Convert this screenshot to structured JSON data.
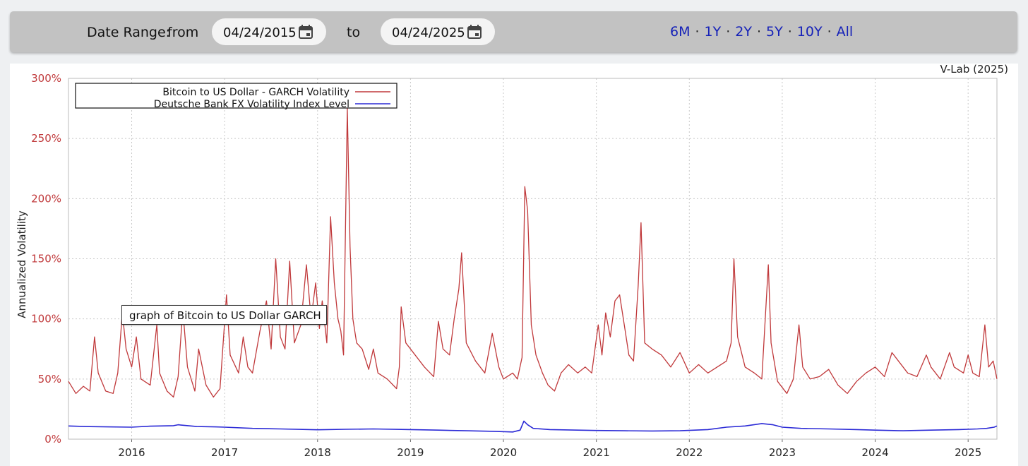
{
  "toolbar": {
    "date_range_label": "Date Range:",
    "from_label": "from",
    "from_date": "04/24/2015",
    "to_label": "to",
    "to_date": "04/24/2025",
    "range_links": [
      "6M",
      "1Y",
      "2Y",
      "5Y",
      "10Y",
      "All"
    ],
    "separator": "·"
  },
  "tooltip": "graph of Bitcoin to US Dollar GARCH",
  "chart_data": {
    "type": "line",
    "credit": "V-Lab (2025)",
    "ylabel": "Annualized Volatility",
    "xlabel": "",
    "xlim": [
      2015.32,
      2025.31
    ],
    "ylim": [
      0,
      300
    ],
    "y_ticks": [
      "0%",
      "50%",
      "100%",
      "150%",
      "200%",
      "250%",
      "300%"
    ],
    "y_tick_values": [
      0,
      50,
      100,
      150,
      200,
      250,
      300
    ],
    "x_ticks": [
      "2016",
      "2017",
      "2018",
      "2019",
      "2020",
      "2021",
      "2022",
      "2023",
      "2024",
      "2025"
    ],
    "grid": true,
    "legend_position": "top-left",
    "series": [
      {
        "name": "Bitcoin to US Dollar - GARCH Volatility",
        "color": "#c0393b",
        "points": [
          [
            2015.32,
            48
          ],
          [
            2015.4,
            38
          ],
          [
            2015.48,
            44
          ],
          [
            2015.55,
            40
          ],
          [
            2015.6,
            85
          ],
          [
            2015.64,
            55
          ],
          [
            2015.72,
            40
          ],
          [
            2015.8,
            38
          ],
          [
            2015.85,
            55
          ],
          [
            2015.9,
            105
          ],
          [
            2015.94,
            75
          ],
          [
            2016.0,
            60
          ],
          [
            2016.05,
            85
          ],
          [
            2016.1,
            50
          ],
          [
            2016.2,
            45
          ],
          [
            2016.27,
            95
          ],
          [
            2016.3,
            55
          ],
          [
            2016.38,
            40
          ],
          [
            2016.45,
            35
          ],
          [
            2016.5,
            52
          ],
          [
            2016.55,
            108
          ],
          [
            2016.6,
            60
          ],
          [
            2016.68,
            40
          ],
          [
            2016.72,
            75
          ],
          [
            2016.8,
            45
          ],
          [
            2016.88,
            35
          ],
          [
            2016.95,
            42
          ],
          [
            2017.02,
            120
          ],
          [
            2017.06,
            70
          ],
          [
            2017.15,
            55
          ],
          [
            2017.2,
            85
          ],
          [
            2017.25,
            60
          ],
          [
            2017.3,
            55
          ],
          [
            2017.38,
            90
          ],
          [
            2017.45,
            115
          ],
          [
            2017.5,
            75
          ],
          [
            2017.55,
            150
          ],
          [
            2017.6,
            85
          ],
          [
            2017.65,
            75
          ],
          [
            2017.7,
            148
          ],
          [
            2017.75,
            80
          ],
          [
            2017.82,
            95
          ],
          [
            2017.88,
            145
          ],
          [
            2017.93,
            100
          ],
          [
            2017.98,
            130
          ],
          [
            2018.02,
            92
          ],
          [
            2018.05,
            115
          ],
          [
            2018.1,
            80
          ],
          [
            2018.14,
            185
          ],
          [
            2018.18,
            130
          ],
          [
            2018.22,
            100
          ],
          [
            2018.25,
            90
          ],
          [
            2018.28,
            70
          ],
          [
            2018.32,
            275
          ],
          [
            2018.35,
            160
          ],
          [
            2018.38,
            100
          ],
          [
            2018.42,
            80
          ],
          [
            2018.48,
            75
          ],
          [
            2018.55,
            58
          ],
          [
            2018.6,
            75
          ],
          [
            2018.65,
            55
          ],
          [
            2018.75,
            50
          ],
          [
            2018.85,
            42
          ],
          [
            2018.88,
            60
          ],
          [
            2018.9,
            110
          ],
          [
            2018.95,
            80
          ],
          [
            2019.05,
            70
          ],
          [
            2019.15,
            60
          ],
          [
            2019.25,
            52
          ],
          [
            2019.3,
            98
          ],
          [
            2019.35,
            75
          ],
          [
            2019.42,
            70
          ],
          [
            2019.47,
            100
          ],
          [
            2019.52,
            125
          ],
          [
            2019.55,
            155
          ],
          [
            2019.6,
            80
          ],
          [
            2019.7,
            65
          ],
          [
            2019.8,
            55
          ],
          [
            2019.88,
            88
          ],
          [
            2019.95,
            60
          ],
          [
            2020.0,
            50
          ],
          [
            2020.1,
            55
          ],
          [
            2020.15,
            50
          ],
          [
            2020.2,
            68
          ],
          [
            2020.23,
            210
          ],
          [
            2020.26,
            190
          ],
          [
            2020.3,
            95
          ],
          [
            2020.35,
            70
          ],
          [
            2020.42,
            55
          ],
          [
            2020.48,
            45
          ],
          [
            2020.55,
            40
          ],
          [
            2020.62,
            55
          ],
          [
            2020.7,
            62
          ],
          [
            2020.8,
            55
          ],
          [
            2020.88,
            60
          ],
          [
            2020.95,
            55
          ],
          [
            2021.02,
            95
          ],
          [
            2021.06,
            70
          ],
          [
            2021.1,
            105
          ],
          [
            2021.15,
            85
          ],
          [
            2021.2,
            115
          ],
          [
            2021.25,
            120
          ],
          [
            2021.3,
            95
          ],
          [
            2021.35,
            70
          ],
          [
            2021.4,
            65
          ],
          [
            2021.45,
            128
          ],
          [
            2021.48,
            180
          ],
          [
            2021.52,
            80
          ],
          [
            2021.6,
            75
          ],
          [
            2021.7,
            70
          ],
          [
            2021.8,
            60
          ],
          [
            2021.9,
            72
          ],
          [
            2022.0,
            55
          ],
          [
            2022.1,
            62
          ],
          [
            2022.2,
            55
          ],
          [
            2022.3,
            60
          ],
          [
            2022.4,
            65
          ],
          [
            2022.45,
            80
          ],
          [
            2022.48,
            150
          ],
          [
            2022.52,
            85
          ],
          [
            2022.6,
            60
          ],
          [
            2022.7,
            55
          ],
          [
            2022.78,
            50
          ],
          [
            2022.85,
            145
          ],
          [
            2022.88,
            80
          ],
          [
            2022.95,
            48
          ],
          [
            2023.05,
            38
          ],
          [
            2023.12,
            50
          ],
          [
            2023.18,
            95
          ],
          [
            2023.22,
            60
          ],
          [
            2023.3,
            50
          ],
          [
            2023.4,
            52
          ],
          [
            2023.5,
            58
          ],
          [
            2023.6,
            45
          ],
          [
            2023.7,
            38
          ],
          [
            2023.8,
            48
          ],
          [
            2023.9,
            55
          ],
          [
            2024.0,
            60
          ],
          [
            2024.1,
            52
          ],
          [
            2024.18,
            72
          ],
          [
            2024.25,
            65
          ],
          [
            2024.35,
            55
          ],
          [
            2024.45,
            52
          ],
          [
            2024.55,
            70
          ],
          [
            2024.6,
            60
          ],
          [
            2024.7,
            50
          ],
          [
            2024.8,
            72
          ],
          [
            2024.85,
            60
          ],
          [
            2024.95,
            55
          ],
          [
            2025.0,
            70
          ],
          [
            2025.05,
            55
          ],
          [
            2025.12,
            52
          ],
          [
            2025.18,
            95
          ],
          [
            2025.22,
            60
          ],
          [
            2025.27,
            65
          ],
          [
            2025.31,
            50
          ]
        ]
      },
      {
        "name": "Deutsche Bank FX Volatility Index Level",
        "color": "#2b2ad6",
        "points": [
          [
            2015.32,
            11
          ],
          [
            2015.5,
            10.5
          ],
          [
            2015.75,
            10.2
          ],
          [
            2016.0,
            10
          ],
          [
            2016.2,
            10.8
          ],
          [
            2016.45,
            11.2
          ],
          [
            2016.5,
            12
          ],
          [
            2016.7,
            10.5
          ],
          [
            2016.9,
            10.2
          ],
          [
            2017.0,
            10
          ],
          [
            2017.3,
            9
          ],
          [
            2017.6,
            8.5
          ],
          [
            2018.0,
            7.8
          ],
          [
            2018.3,
            8.2
          ],
          [
            2018.6,
            8.5
          ],
          [
            2019.0,
            8
          ],
          [
            2019.3,
            7.5
          ],
          [
            2019.6,
            7
          ],
          [
            2019.9,
            6.5
          ],
          [
            2020.1,
            6
          ],
          [
            2020.18,
            7.5
          ],
          [
            2020.22,
            15
          ],
          [
            2020.26,
            12
          ],
          [
            2020.32,
            9
          ],
          [
            2020.5,
            8
          ],
          [
            2020.8,
            7.5
          ],
          [
            2021.0,
            7.2
          ],
          [
            2021.3,
            7
          ],
          [
            2021.6,
            6.8
          ],
          [
            2021.9,
            7
          ],
          [
            2022.2,
            8
          ],
          [
            2022.4,
            10
          ],
          [
            2022.6,
            11
          ],
          [
            2022.78,
            13
          ],
          [
            2022.9,
            12
          ],
          [
            2023.0,
            10
          ],
          [
            2023.2,
            9
          ],
          [
            2023.5,
            8.5
          ],
          [
            2023.8,
            8
          ],
          [
            2024.0,
            7.5
          ],
          [
            2024.3,
            7
          ],
          [
            2024.6,
            7.5
          ],
          [
            2024.9,
            8
          ],
          [
            2025.1,
            8.5
          ],
          [
            2025.2,
            9
          ],
          [
            2025.28,
            10
          ],
          [
            2025.31,
            11
          ]
        ]
      }
    ]
  }
}
